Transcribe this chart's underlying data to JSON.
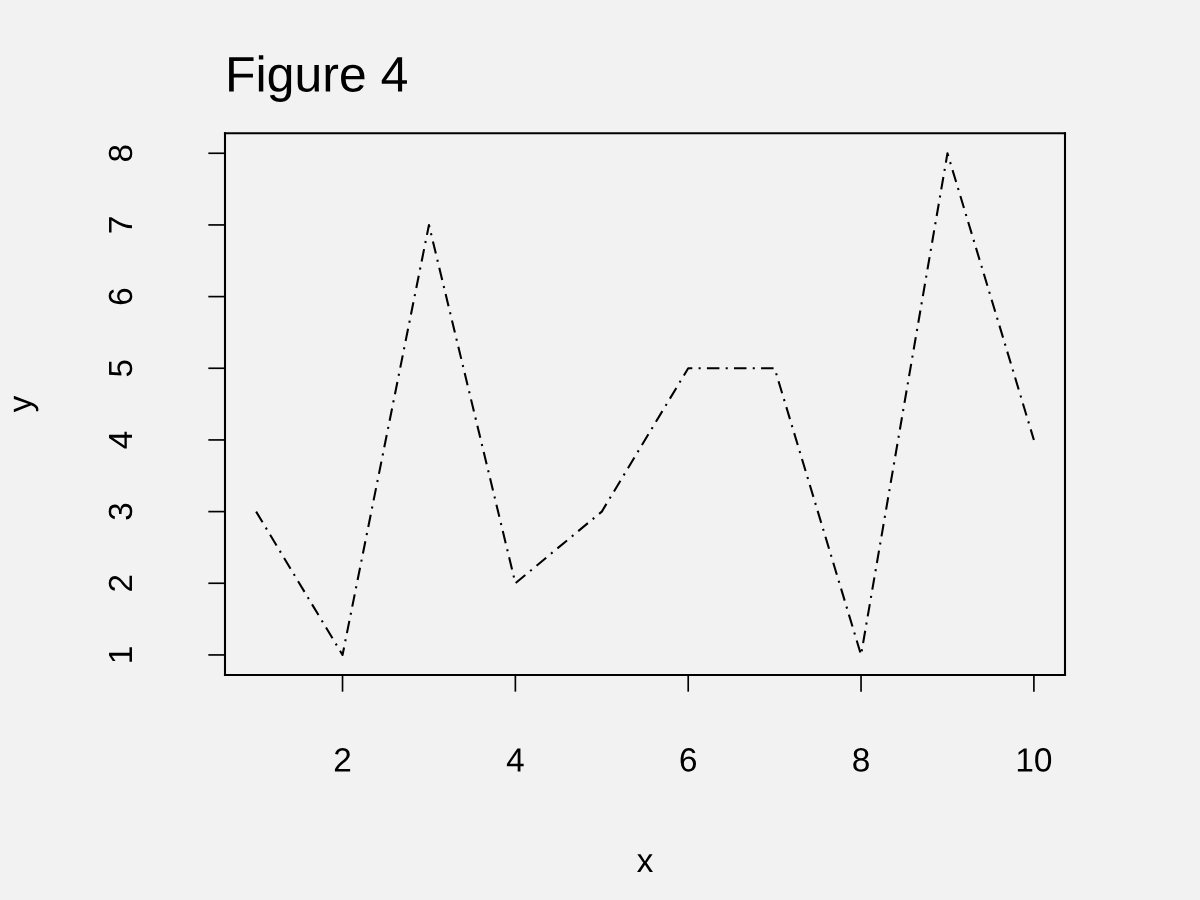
{
  "chart_data": {
    "type": "line",
    "title": "Figure 4",
    "xlabel": "x",
    "ylabel": "y",
    "x": [
      1,
      2,
      3,
      4,
      5,
      6,
      7,
      8,
      9,
      10
    ],
    "series": [
      {
        "color": "#000000",
        "values": [
          3,
          1,
          7,
          2,
          3,
          5,
          5,
          1,
          8,
          4
        ]
      }
    ],
    "xlim": [
      0.64,
      10.36
    ],
    "ylim": [
      0.72,
      8.28
    ],
    "xticks": [
      2,
      4,
      6,
      8,
      10
    ],
    "yticks": [
      1,
      2,
      3,
      4,
      5,
      6,
      7,
      8
    ],
    "line_style": "dashed",
    "grid": false,
    "legend": false
  }
}
